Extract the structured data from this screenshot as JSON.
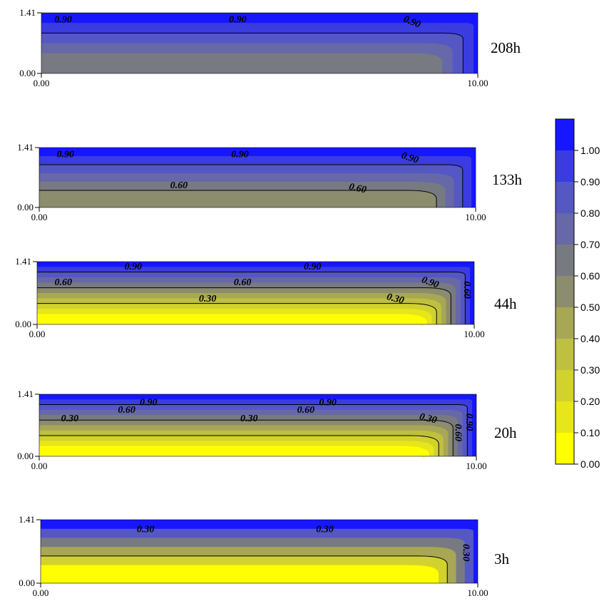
{
  "chart_data": {
    "type": "heatmap",
    "colorbar": {
      "ticks": [
        "0.00",
        "0.10",
        "0.20",
        "0.30",
        "0.40",
        "0.50",
        "0.60",
        "0.70",
        "0.80",
        "0.90",
        "1.00"
      ],
      "range": [
        0,
        1.1
      ],
      "step": 0.1,
      "colors": [
        "#ffff00",
        "#e6e61a",
        "#d2d22e",
        "#bfbf40",
        "#a7a755",
        "#8c8c6e",
        "#787a82",
        "#6668a7",
        "#5557c4",
        "#3a3ce0",
        "#1717ff"
      ]
    },
    "panels": [
      {
        "label": "208h",
        "xlim": [
          0,
          10
        ],
        "ylim": [
          0,
          1.41
        ],
        "x_ticks": [
          "0.00",
          "10.00"
        ],
        "y_ticks": [
          "0.00",
          "1.41"
        ],
        "band_levels": [
          0.68,
          0.78,
          0.88,
          0.95,
          1.05
        ],
        "contours": [
          {
            "level": 0.9,
            "labels": [
              "0.90",
              "0.90",
              "0.90"
            ]
          }
        ]
      },
      {
        "label": "133h",
        "xlim": [
          0,
          10
        ],
        "ylim": [
          0,
          1.41
        ],
        "x_ticks": [
          "0.00",
          "10.00"
        ],
        "y_ticks": [
          "0.00",
          "1.41"
        ],
        "band_levels": [
          0.55,
          0.65,
          0.75,
          0.85,
          0.95,
          1.05
        ],
        "contours": [
          {
            "level": 0.9,
            "labels": [
              "0.90",
              "0.90",
              "0.90"
            ]
          },
          {
            "level": 0.6,
            "labels": [
              "0.60",
              "0.60"
            ]
          }
        ]
      },
      {
        "label": "44h",
        "xlim": [
          0,
          10
        ],
        "ylim": [
          0,
          1.41
        ],
        "x_ticks": [
          "0.00",
          "10.00"
        ],
        "y_ticks": [
          "0.00",
          "1.41"
        ],
        "band_levels": [
          0.05,
          0.15,
          0.25,
          0.35,
          0.45,
          0.55,
          0.65,
          0.75,
          0.85,
          0.95,
          1.05
        ],
        "contours": [
          {
            "level": 0.9,
            "labels": [
              "0.90",
              "0.90",
              "0.90"
            ]
          },
          {
            "level": 0.6,
            "labels": [
              "0.60",
              "0.60",
              "0.60"
            ]
          },
          {
            "level": 0.3,
            "labels": [
              "0.30",
              "0.30"
            ]
          }
        ]
      },
      {
        "label": "20h",
        "xlim": [
          0,
          10
        ],
        "ylim": [
          0,
          1.41
        ],
        "x_ticks": [
          "0.00",
          "10.00"
        ],
        "y_ticks": [
          "0.00",
          "1.41"
        ],
        "band_levels": [
          0.02,
          0.1,
          0.2,
          0.3,
          0.4,
          0.5,
          0.6,
          0.7,
          0.8,
          0.9,
          1.0
        ],
        "contours": [
          {
            "level": 0.9,
            "labels": [
              "0.90",
              "0.90",
              "0.90"
            ]
          },
          {
            "level": 0.6,
            "labels": [
              "0.60",
              "0.60",
              "0.60"
            ]
          },
          {
            "level": 0.3,
            "labels": [
              "0.30",
              "0.30",
              "0.30"
            ]
          }
        ]
      },
      {
        "label": "3h",
        "xlim": [
          0,
          10
        ],
        "ylim": [
          0,
          1.41
        ],
        "x_ticks": [
          "0.00",
          "10.00"
        ],
        "y_ticks": [
          "0.00",
          "1.41"
        ],
        "band_levels": [
          0.05,
          0.2,
          0.4,
          0.6,
          0.8,
          1.0
        ],
        "contours": [
          {
            "level": 0.3,
            "labels": [
              "0.30",
              "0.30",
              "0.30"
            ]
          }
        ]
      }
    ]
  }
}
